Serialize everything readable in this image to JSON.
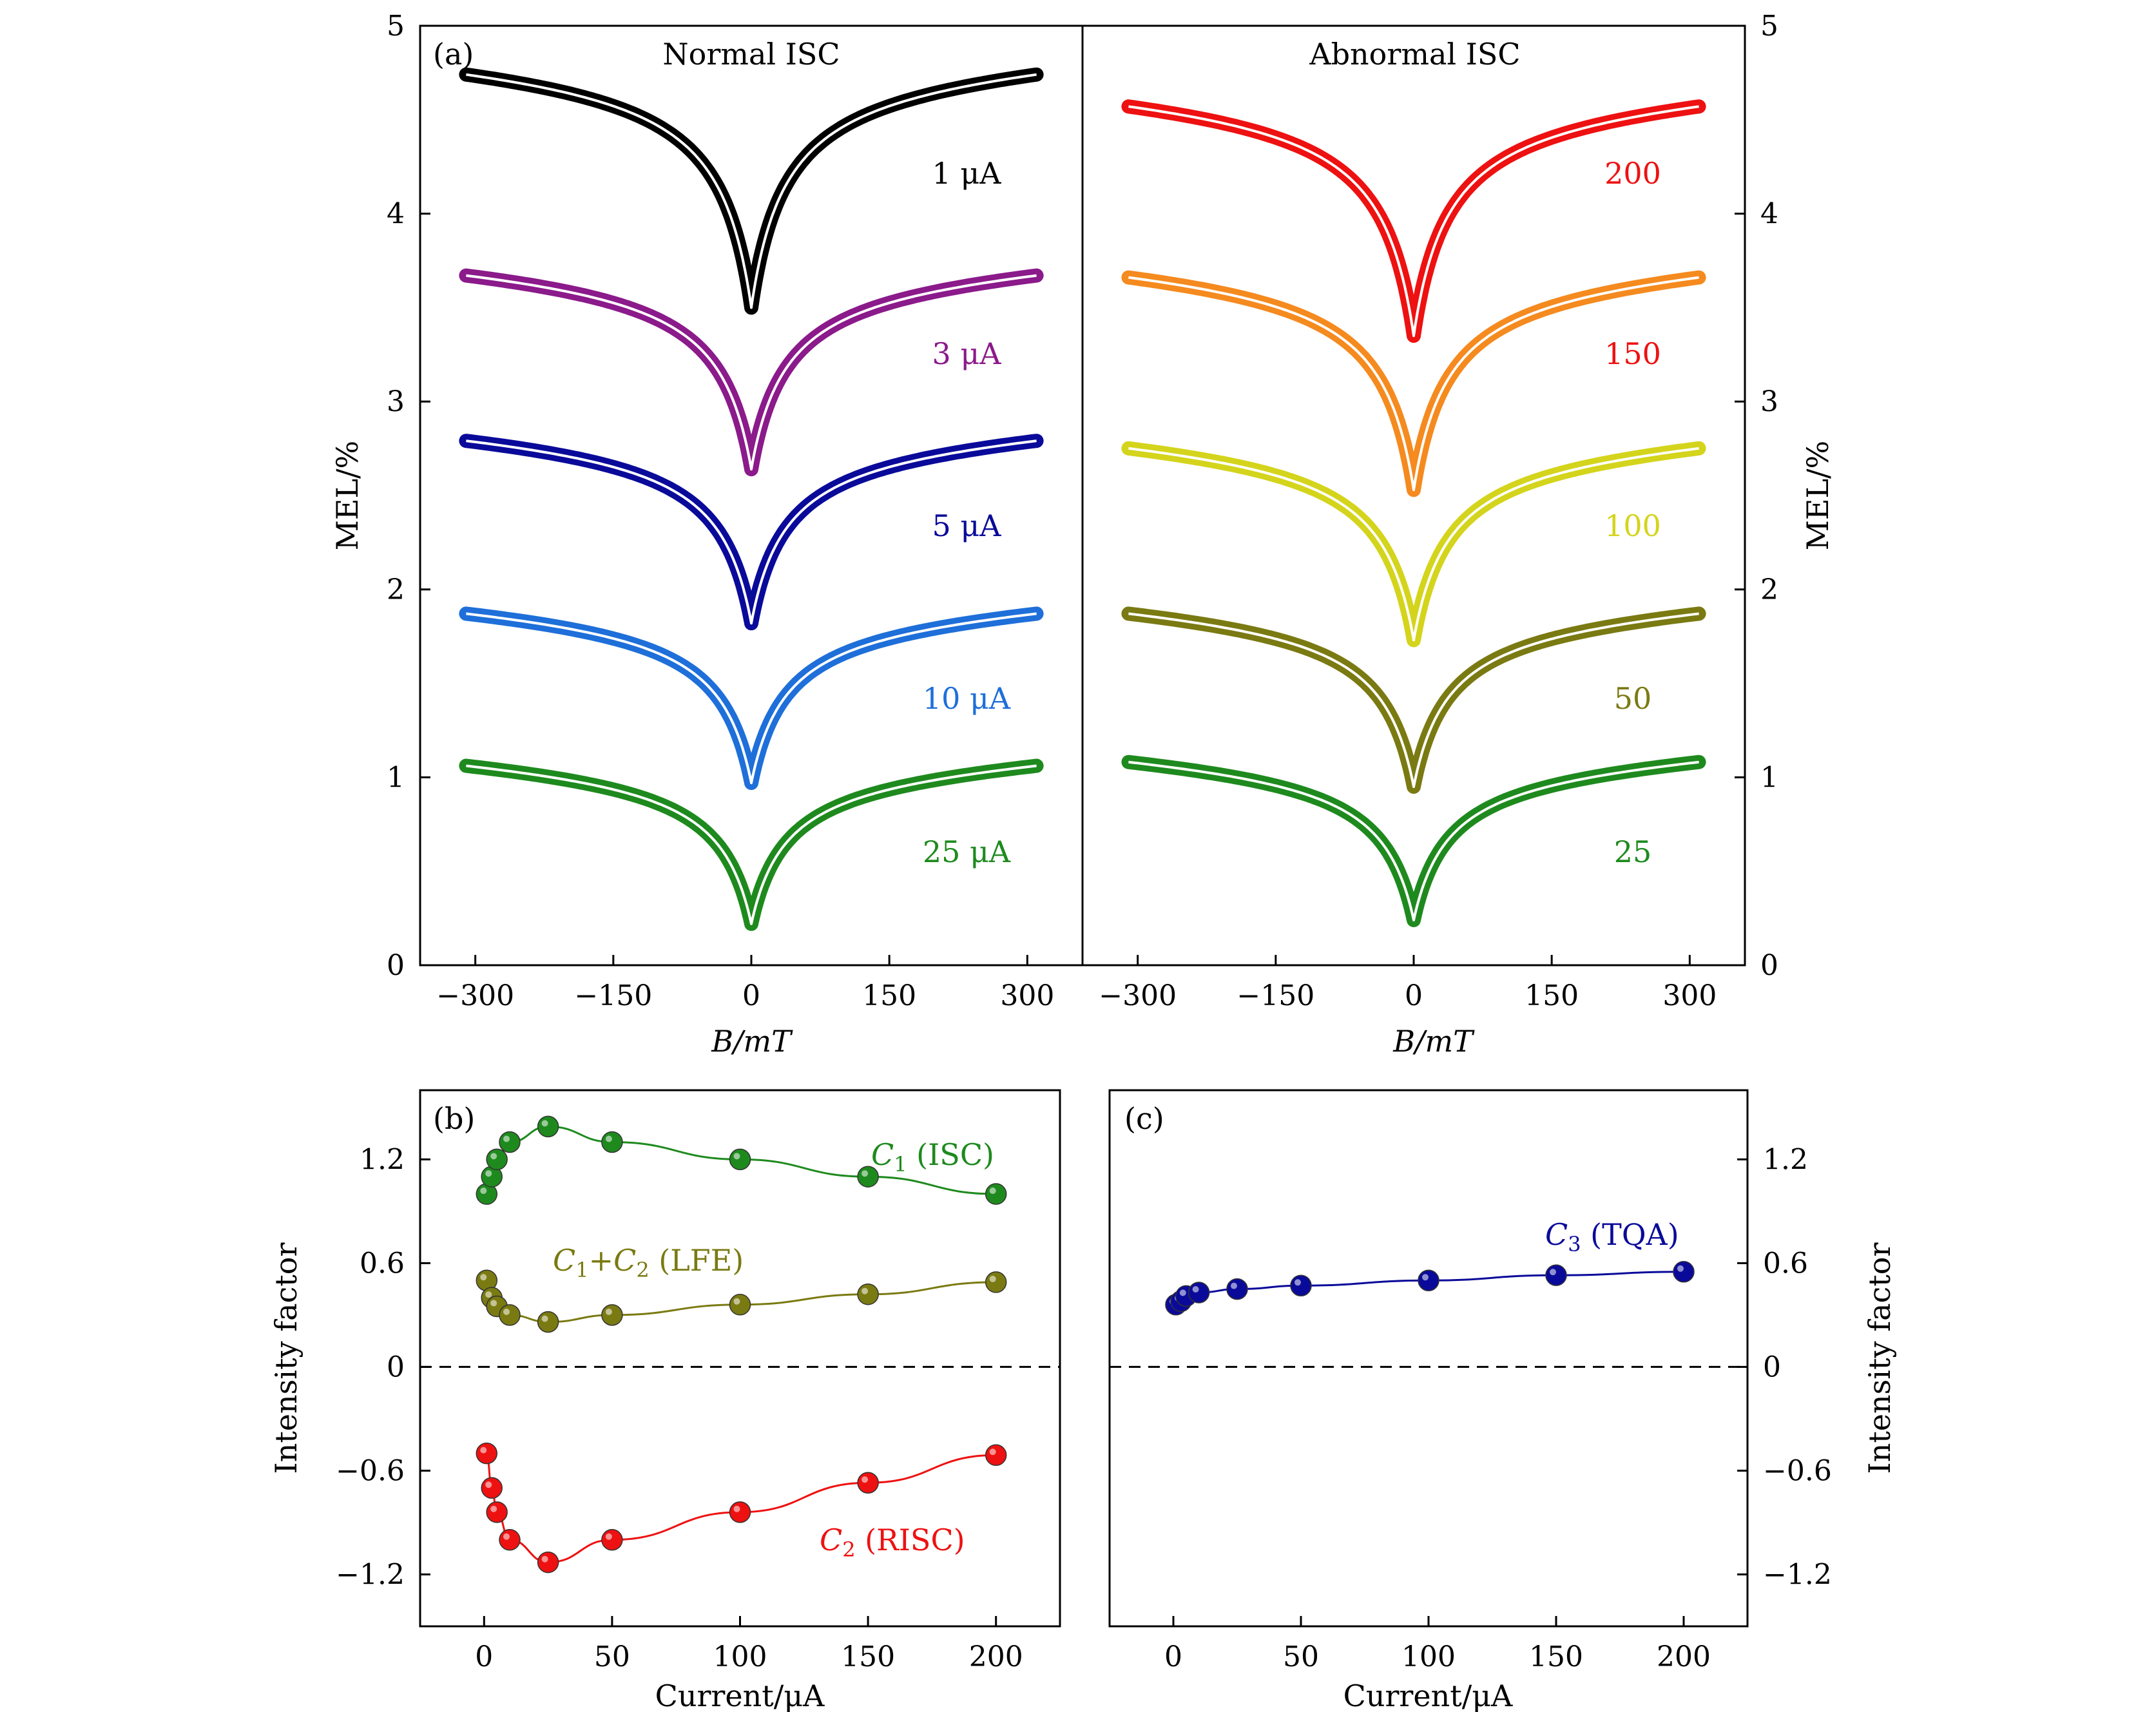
{
  "panels": {
    "a": {
      "label": "(a)",
      "left_title": "Normal ISC",
      "right_title": "Abnormal ISC",
      "left_title_color": "#000000",
      "right_title_color": "#e02020",
      "ylabel_left": "MEL/%",
      "ylabel_right": "MEL/%",
      "xlabel_left": "B/mT",
      "xlabel_right": "B/mT",
      "yticks": [
        "0",
        "1",
        "2",
        "3",
        "4",
        "5"
      ],
      "xticks": [
        "−300",
        "−150",
        "0",
        "150",
        "300"
      ]
    },
    "b": {
      "label": "(b)",
      "ylabel": "Intensity factor",
      "xlabel": "Current/μA",
      "yticks": [
        "−1.2",
        "−0.6",
        "0",
        "0.6",
        "1.2"
      ],
      "xticks": [
        "0",
        "50",
        "100",
        "150",
        "200"
      ],
      "series_labels": [
        "C1 (ISC)",
        "C1+C2 (LFE)",
        "C2 (RISC)"
      ]
    },
    "c": {
      "label": "(c)",
      "ylabel": "Intensity factor",
      "xlabel": "Current/μA",
      "yticks": [
        "−1.2",
        "−0.6",
        "0",
        "0.6",
        "1.2"
      ],
      "xticks": [
        "0",
        "50",
        "100",
        "150",
        "200"
      ],
      "series_labels": [
        "C3 (TQA)"
      ]
    }
  },
  "chart_data": [
    {
      "type": "line",
      "panel": "a-left",
      "title": "Normal ISC",
      "xlabel": "B/mT",
      "ylabel": "MEL/%",
      "xlim": [
        -360,
        360
      ],
      "ylim": [
        0,
        5
      ],
      "field_range": [
        -310,
        310
      ],
      "series": [
        {
          "name": "1 μA",
          "color": "#000000",
          "offset": 3.5,
          "amplitude": 1.15
        },
        {
          "name": "3 μA",
          "color": "#8b1a8b",
          "offset": 2.64,
          "amplitude": 0.94
        },
        {
          "name": "5 μA",
          "color": "#0a0a9a",
          "offset": 1.82,
          "amplitude": 0.88
        },
        {
          "name": "10 μA",
          "color": "#1e6fd9",
          "offset": 0.97,
          "amplitude": 0.81
        },
        {
          "name": "25 μA",
          "color": "#1e8a1e",
          "offset": 0.22,
          "amplitude": 0.75
        }
      ]
    },
    {
      "type": "line",
      "panel": "a-right",
      "title": "Abnormal ISC",
      "xlabel": "B/mT",
      "ylabel": "MEL/%",
      "xlim": [
        -360,
        360
      ],
      "ylim": [
        0,
        5
      ],
      "field_range": [
        -310,
        310
      ],
      "series": [
        {
          "name": "200",
          "color": "#ee1111",
          "offset": 3.35,
          "amplitude": 1.13
        },
        {
          "name": "150",
          "color": "#f58a1f",
          "offset": 2.53,
          "amplitude": 1.04
        },
        {
          "name": "100",
          "color": "#d4d41c",
          "offset": 1.73,
          "amplitude": 0.93
        },
        {
          "name": "50",
          "color": "#7a7a12",
          "offset": 0.95,
          "amplitude": 0.83
        },
        {
          "name": "25",
          "color": "#1e8a1e",
          "offset": 0.24,
          "amplitude": 0.75
        }
      ]
    },
    {
      "type": "scatter",
      "panel": "b",
      "xlabel": "Current/μA",
      "ylabel": "Intensity factor",
      "xlim": [
        -25,
        225
      ],
      "ylim": [
        -1.5,
        1.6
      ],
      "series": [
        {
          "name": "C1 (ISC)",
          "color": "#1e8a1e",
          "x": [
            1,
            3,
            5,
            10,
            25,
            50,
            100,
            150,
            200
          ],
          "y": [
            1.0,
            1.1,
            1.2,
            1.3,
            1.39,
            1.3,
            1.2,
            1.1,
            1.0
          ]
        },
        {
          "name": "C1+C2 (LFE)",
          "color": "#7a7a12",
          "x": [
            1,
            3,
            5,
            10,
            25,
            50,
            100,
            150,
            200
          ],
          "y": [
            0.5,
            0.4,
            0.35,
            0.3,
            0.26,
            0.3,
            0.36,
            0.42,
            0.49
          ]
        },
        {
          "name": "C2 (RISC)",
          "color": "#ee1111",
          "x": [
            1,
            3,
            5,
            10,
            25,
            50,
            100,
            150,
            200
          ],
          "y": [
            -0.5,
            -0.7,
            -0.84,
            -1.0,
            -1.13,
            -1.0,
            -0.84,
            -0.67,
            -0.51
          ]
        }
      ],
      "reference_line": 0
    },
    {
      "type": "scatter",
      "panel": "c",
      "xlabel": "Current/μA",
      "ylabel": "Intensity factor",
      "xlim": [
        -25,
        225
      ],
      "ylim": [
        -1.5,
        1.6
      ],
      "series": [
        {
          "name": "C3 (TQA)",
          "color": "#0a0a9a",
          "x": [
            1,
            3,
            5,
            10,
            25,
            50,
            100,
            150,
            200
          ],
          "y": [
            0.36,
            0.38,
            0.41,
            0.43,
            0.45,
            0.47,
            0.5,
            0.53,
            0.55
          ]
        }
      ],
      "reference_line": 0
    }
  ]
}
